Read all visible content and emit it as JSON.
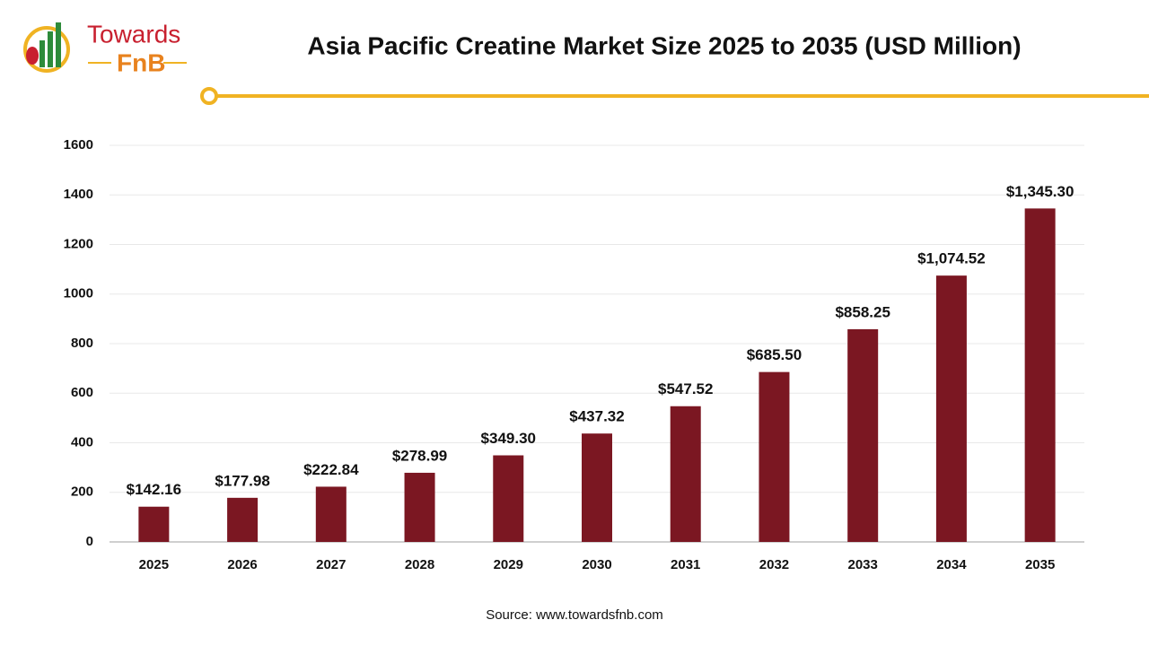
{
  "logo": {
    "line1": "Towards",
    "line2": "FnB"
  },
  "chart_data": {
    "type": "bar",
    "title": "Asia Pacific Creatine Market Size 2025 to 2035 (USD Million)",
    "categories": [
      "2025",
      "2026",
      "2027",
      "2028",
      "2029",
      "2030",
      "2031",
      "2032",
      "2033",
      "2034",
      "2035"
    ],
    "values": [
      142.16,
      177.98,
      222.84,
      278.99,
      349.3,
      437.32,
      547.52,
      685.5,
      858.25,
      1074.52,
      1345.3
    ],
    "value_labels": [
      "$142.16",
      "$177.98",
      "$222.84",
      "$278.99",
      "$349.30",
      "$437.32",
      "$547.52",
      "$685.50",
      "$858.25",
      "$1,074.52",
      "$1,345.30"
    ],
    "color": "#7b1722",
    "ylim": [
      0,
      1600
    ],
    "yticks": [
      0,
      200,
      400,
      600,
      800,
      1000,
      1200,
      1400,
      1600
    ],
    "grid": true,
    "source": "Source: www.towardsfnb.com"
  }
}
